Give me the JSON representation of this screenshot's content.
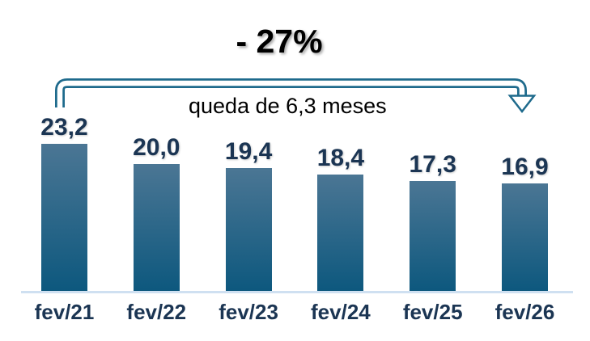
{
  "chart_data": {
    "type": "bar",
    "title": "",
    "categories": [
      "fev/21",
      "fev/22",
      "fev/23",
      "fev/24",
      "fev/25",
      "fev/26"
    ],
    "values": [
      23.2,
      20.0,
      19.4,
      18.4,
      17.3,
      16.9
    ],
    "value_labels": [
      "23,2",
      "20,0",
      "19,4",
      "18,4",
      "17,3",
      "16,9"
    ],
    "ylim": [
      0,
      24
    ],
    "grid": false,
    "legend": "none",
    "xlabel": "",
    "ylabel": "",
    "annotations": {
      "percent_change": "- 27%",
      "drop_label": "queda de 6,3 meses"
    },
    "colors": {
      "bar_gradient_top": "#4b7694",
      "bar_gradient_bottom": "#0d587e",
      "value_label": "#1b3553",
      "axis_label": "#1b3553",
      "annotation_text": "#000000",
      "arrow": "#1e6a8c",
      "baseline": "#cfe0f1"
    }
  }
}
